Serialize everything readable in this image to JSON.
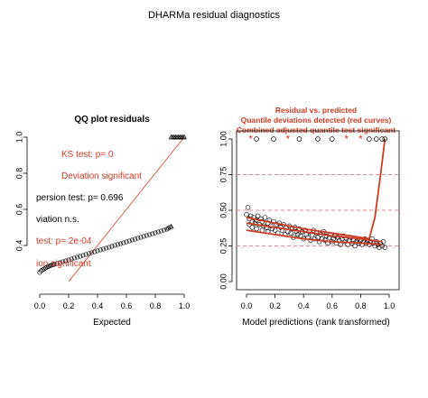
{
  "figure": {
    "title": "DHARMa residual diagnostics"
  },
  "colors": {
    "text": "#000000",
    "red": "#d03a22",
    "dashed": "#e58a8a",
    "points": "#000000"
  },
  "chart_data": [
    {
      "type": "scatter",
      "title": "QQ plot residuals",
      "xlabel": "Expected",
      "ylabel": "",
      "xlim": [
        0,
        1
      ],
      "ylim": [
        0.2,
        1.0
      ],
      "x_ticks": [
        "0.0",
        "0.2",
        "0.4",
        "0.6",
        "0.8",
        "1.0"
      ],
      "y_ticks": [
        "0.4",
        "0.6",
        "0.8",
        "1.0"
      ],
      "reference_line": "y = x",
      "annotations": [
        {
          "text": "KS test: p= 0",
          "color": "red"
        },
        {
          "text": "Deviation  significant",
          "color": "red"
        },
        {
          "text": "persion test: p= 0.696",
          "color": "black"
        },
        {
          "text": "viation  n.s.",
          "color": "black"
        },
        {
          "text": " test: p= 2e-04",
          "color": "red"
        },
        {
          "text": "ion  significant",
          "color": "red"
        }
      ],
      "series": [
        {
          "name": "",
          "shape": "circle",
          "points": [
            [
              0.0,
              0.25
            ],
            [
              0.01,
              0.26
            ],
            [
              0.02,
              0.265
            ],
            [
              0.03,
              0.27
            ],
            [
              0.04,
              0.275
            ],
            [
              0.05,
              0.28
            ],
            [
              0.06,
              0.283
            ],
            [
              0.07,
              0.287
            ],
            [
              0.08,
              0.29
            ],
            [
              0.09,
              0.293
            ],
            [
              0.1,
              0.296
            ],
            [
              0.12,
              0.3
            ],
            [
              0.14,
              0.305
            ],
            [
              0.16,
              0.31
            ],
            [
              0.18,
              0.315
            ],
            [
              0.2,
              0.32
            ],
            [
              0.22,
              0.325
            ],
            [
              0.24,
              0.33
            ],
            [
              0.26,
              0.335
            ],
            [
              0.28,
              0.34
            ],
            [
              0.3,
              0.345
            ],
            [
              0.32,
              0.35
            ],
            [
              0.34,
              0.355
            ],
            [
              0.36,
              0.36
            ],
            [
              0.38,
              0.365
            ],
            [
              0.4,
              0.37
            ],
            [
              0.42,
              0.375
            ],
            [
              0.44,
              0.38
            ],
            [
              0.46,
              0.385
            ],
            [
              0.48,
              0.39
            ],
            [
              0.5,
              0.395
            ],
            [
              0.52,
              0.4
            ],
            [
              0.54,
              0.405
            ],
            [
              0.56,
              0.41
            ],
            [
              0.58,
              0.415
            ],
            [
              0.6,
              0.42
            ],
            [
              0.62,
              0.425
            ],
            [
              0.64,
              0.43
            ],
            [
              0.66,
              0.435
            ],
            [
              0.68,
              0.44
            ],
            [
              0.7,
              0.445
            ],
            [
              0.72,
              0.45
            ],
            [
              0.74,
              0.455
            ],
            [
              0.76,
              0.46
            ],
            [
              0.78,
              0.465
            ],
            [
              0.8,
              0.47
            ],
            [
              0.82,
              0.475
            ],
            [
              0.84,
              0.48
            ],
            [
              0.86,
              0.485
            ],
            [
              0.88,
              0.49
            ],
            [
              0.89,
              0.495
            ],
            [
              0.9,
              0.5
            ]
          ]
        },
        {
          "name": "",
          "shape": "triangle",
          "points": [
            [
              0.91,
              0.505
            ],
            [
              0.91,
              1.0
            ],
            [
              0.92,
              1.0
            ],
            [
              0.93,
              1.0
            ],
            [
              0.94,
              1.0
            ],
            [
              0.95,
              1.0
            ],
            [
              0.96,
              1.0
            ],
            [
              0.97,
              1.0
            ],
            [
              0.98,
              1.0
            ],
            [
              0.99,
              1.0
            ],
            [
              1.0,
              1.0
            ]
          ]
        }
      ]
    },
    {
      "type": "scatter",
      "title": "Residual vs. predicted",
      "subtitle_lines": [
        "Quantile deviations detected (red curves)",
        "Combined adjusted quantile test significant"
      ],
      "xlabel": "Model predictions (rank transformed)",
      "ylabel": "",
      "xlim": [
        0,
        1
      ],
      "ylim": [
        0,
        1
      ],
      "x_ticks": [
        "0.0",
        "0.2",
        "0.4",
        "0.6",
        "0.8",
        "1.0"
      ],
      "y_ticks": [
        "0.00",
        "0.25",
        "0.50",
        "0.75",
        "1.00"
      ],
      "hlines": [
        0.25,
        0.5,
        0.75
      ],
      "quantile_curves": [
        {
          "name": "0.25",
          "points": [
            [
              0.0,
              0.36
            ],
            [
              0.2,
              0.33
            ],
            [
              0.4,
              0.3
            ],
            [
              0.6,
              0.28
            ],
            [
              0.8,
              0.27
            ],
            [
              0.95,
              0.26
            ]
          ]
        },
        {
          "name": "0.5",
          "points": [
            [
              0.0,
              0.45
            ],
            [
              0.2,
              0.41
            ],
            [
              0.4,
              0.37
            ],
            [
              0.6,
              0.34
            ],
            [
              0.8,
              0.31
            ],
            [
              0.86,
              0.3
            ],
            [
              0.9,
              0.45
            ],
            [
              0.94,
              0.75
            ],
            [
              0.97,
              1.0
            ]
          ]
        },
        {
          "name": "0.75",
          "points": [
            [
              0.0,
              0.41
            ],
            [
              0.2,
              0.38
            ],
            [
              0.4,
              0.35
            ],
            [
              0.6,
              0.32
            ],
            [
              0.8,
              0.3
            ],
            [
              0.95,
              0.28
            ]
          ]
        }
      ],
      "outliers_top": [
        {
          "x": 0.03,
          "shape": "star"
        },
        {
          "x": 0.07,
          "shape": "circle"
        },
        {
          "x": 0.19,
          "shape": "circle"
        },
        {
          "x": 0.29,
          "shape": "star"
        },
        {
          "x": 0.37,
          "shape": "circle"
        },
        {
          "x": 0.5,
          "shape": "circle"
        },
        {
          "x": 0.6,
          "shape": "circle"
        },
        {
          "x": 0.7,
          "shape": "star"
        },
        {
          "x": 0.8,
          "shape": "star"
        },
        {
          "x": 0.86,
          "shape": "circle"
        },
        {
          "x": 0.91,
          "shape": "circle"
        },
        {
          "x": 0.95,
          "shape": "circle"
        },
        {
          "x": 0.97,
          "shape": "circle"
        }
      ],
      "series": [
        {
          "name": "",
          "shape": "circle",
          "points": [
            [
              0.0,
              0.47
            ],
            [
              0.01,
              0.52
            ],
            [
              0.02,
              0.44
            ],
            [
              0.02,
              0.4
            ],
            [
              0.03,
              0.46
            ],
            [
              0.04,
              0.42
            ],
            [
              0.04,
              0.38
            ],
            [
              0.05,
              0.45
            ],
            [
              0.06,
              0.41
            ],
            [
              0.07,
              0.43
            ],
            [
              0.07,
              0.37
            ],
            [
              0.08,
              0.46
            ],
            [
              0.09,
              0.4
            ],
            [
              0.1,
              0.44
            ],
            [
              0.11,
              0.36
            ],
            [
              0.11,
              0.42
            ],
            [
              0.12,
              0.39
            ],
            [
              0.13,
              0.45
            ],
            [
              0.14,
              0.38
            ],
            [
              0.15,
              0.41
            ],
            [
              0.15,
              0.35
            ],
            [
              0.16,
              0.43
            ],
            [
              0.17,
              0.39
            ],
            [
              0.18,
              0.37
            ],
            [
              0.19,
              0.42
            ],
            [
              0.2,
              0.36
            ],
            [
              0.21,
              0.4
            ],
            [
              0.22,
              0.34
            ],
            [
              0.23,
              0.41
            ],
            [
              0.24,
              0.38
            ],
            [
              0.25,
              0.36
            ],
            [
              0.26,
              0.4
            ],
            [
              0.27,
              0.33
            ],
            [
              0.28,
              0.38
            ],
            [
              0.29,
              0.35
            ],
            [
              0.3,
              0.39
            ],
            [
              0.31,
              0.34
            ],
            [
              0.32,
              0.37
            ],
            [
              0.33,
              0.31
            ],
            [
              0.34,
              0.38
            ],
            [
              0.35,
              0.35
            ],
            [
              0.36,
              0.33
            ],
            [
              0.37,
              0.37
            ],
            [
              0.38,
              0.32
            ],
            [
              0.39,
              0.35
            ],
            [
              0.4,
              0.3
            ],
            [
              0.41,
              0.36
            ],
            [
              0.42,
              0.33
            ],
            [
              0.43,
              0.31
            ],
            [
              0.44,
              0.35
            ],
            [
              0.45,
              0.29
            ],
            [
              0.46,
              0.33
            ],
            [
              0.47,
              0.36
            ],
            [
              0.48,
              0.3
            ],
            [
              0.49,
              0.34
            ],
            [
              0.5,
              0.31
            ],
            [
              0.51,
              0.28
            ],
            [
              0.52,
              0.33
            ],
            [
              0.53,
              0.3
            ],
            [
              0.54,
              0.35
            ],
            [
              0.55,
              0.29
            ],
            [
              0.56,
              0.32
            ],
            [
              0.57,
              0.27
            ],
            [
              0.58,
              0.31
            ],
            [
              0.59,
              0.33
            ],
            [
              0.6,
              0.28
            ],
            [
              0.61,
              0.3
            ],
            [
              0.62,
              0.32
            ],
            [
              0.63,
              0.27
            ],
            [
              0.64,
              0.31
            ],
            [
              0.65,
              0.29
            ],
            [
              0.66,
              0.26
            ],
            [
              0.67,
              0.3
            ],
            [
              0.68,
              0.32
            ],
            [
              0.69,
              0.28
            ],
            [
              0.7,
              0.3
            ],
            [
              0.71,
              0.26
            ],
            [
              0.72,
              0.29
            ],
            [
              0.73,
              0.31
            ],
            [
              0.74,
              0.27
            ],
            [
              0.75,
              0.29
            ],
            [
              0.76,
              0.25
            ],
            [
              0.77,
              0.28
            ],
            [
              0.78,
              0.3
            ],
            [
              0.79,
              0.27
            ],
            [
              0.8,
              0.29
            ],
            [
              0.81,
              0.26
            ],
            [
              0.82,
              0.28
            ],
            [
              0.83,
              0.3
            ],
            [
              0.84,
              0.27
            ],
            [
              0.85,
              0.29
            ],
            [
              0.86,
              0.26
            ],
            [
              0.87,
              0.28
            ],
            [
              0.88,
              0.3
            ],
            [
              0.89,
              0.27
            ],
            [
              0.9,
              0.25
            ],
            [
              0.91,
              0.28
            ],
            [
              0.92,
              0.26
            ],
            [
              0.93,
              0.24
            ],
            [
              0.94,
              0.27
            ],
            [
              0.95,
              0.25
            ],
            [
              0.96,
              0.28
            ],
            [
              0.97,
              0.24
            ]
          ]
        }
      ]
    }
  ]
}
